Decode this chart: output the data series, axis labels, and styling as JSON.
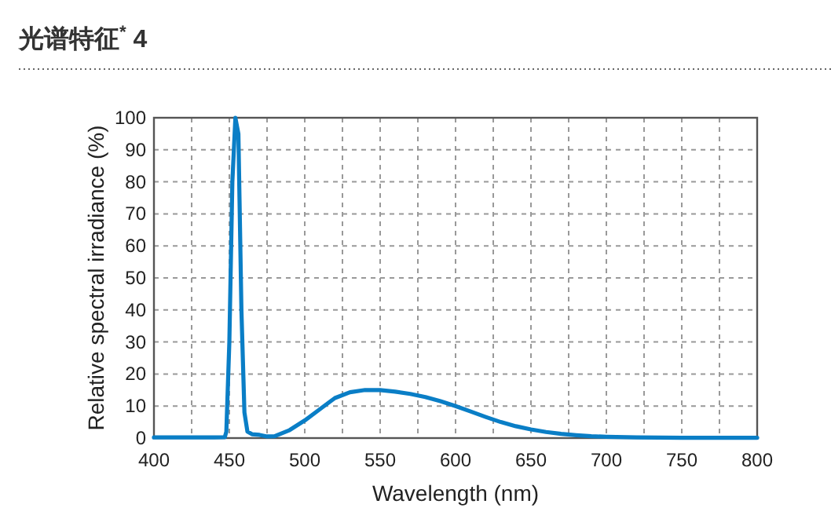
{
  "chart_data": {
    "type": "line",
    "title": "光谱特征$^{*}$ 4",
    "xlabel": "Wavelength (nm)",
    "ylabel": "Relative spectral irradiance (%)",
    "xlim": [
      400,
      800
    ],
    "ylim": [
      0,
      100
    ],
    "xticks": [
      400,
      {
        "value": 425,
        "label": null
      },
      450,
      {
        "value": 475,
        "label": null
      },
      500,
      {
        "value": 525,
        "label": null
      },
      550,
      {
        "value": 575,
        "label": null
      },
      600,
      {
        "value": 625,
        "label": null
      },
      650,
      {
        "value": 675,
        "label": null
      },
      700,
      {
        "value": 725,
        "label": null
      },
      750,
      {
        "value": 775,
        "label": null
      },
      800
    ],
    "yticks": [
      0,
      10,
      20,
      30,
      40,
      50,
      60,
      70,
      80,
      90,
      100
    ],
    "grid": true,
    "marker": "none",
    "line_style": "solid",
    "series": [
      {
        "color": "#0a7ec6",
        "x": [
          400,
          420,
          440,
          447,
          448,
          450,
          452,
          454,
          456,
          458,
          460,
          462,
          465,
          470,
          475,
          480,
          490,
          500,
          510,
          520,
          530,
          540,
          550,
          560,
          570,
          580,
          590,
          600,
          610,
          620,
          630,
          640,
          650,
          660,
          670,
          680,
          690,
          700,
          720,
          750,
          800
        ],
        "values": [
          0.2,
          0.2,
          0.2,
          0.3,
          2,
          30,
          80,
          100,
          95,
          40,
          8,
          2,
          1.2,
          1,
          0.5,
          0.6,
          2.5,
          5.5,
          9,
          12.5,
          14.3,
          15,
          15,
          14.5,
          13.8,
          12.8,
          11.5,
          10,
          8.3,
          6.6,
          5,
          3.7,
          2.7,
          1.9,
          1.3,
          0.9,
          0.6,
          0.4,
          0.2,
          0.1,
          0.1
        ]
      }
    ]
  }
}
